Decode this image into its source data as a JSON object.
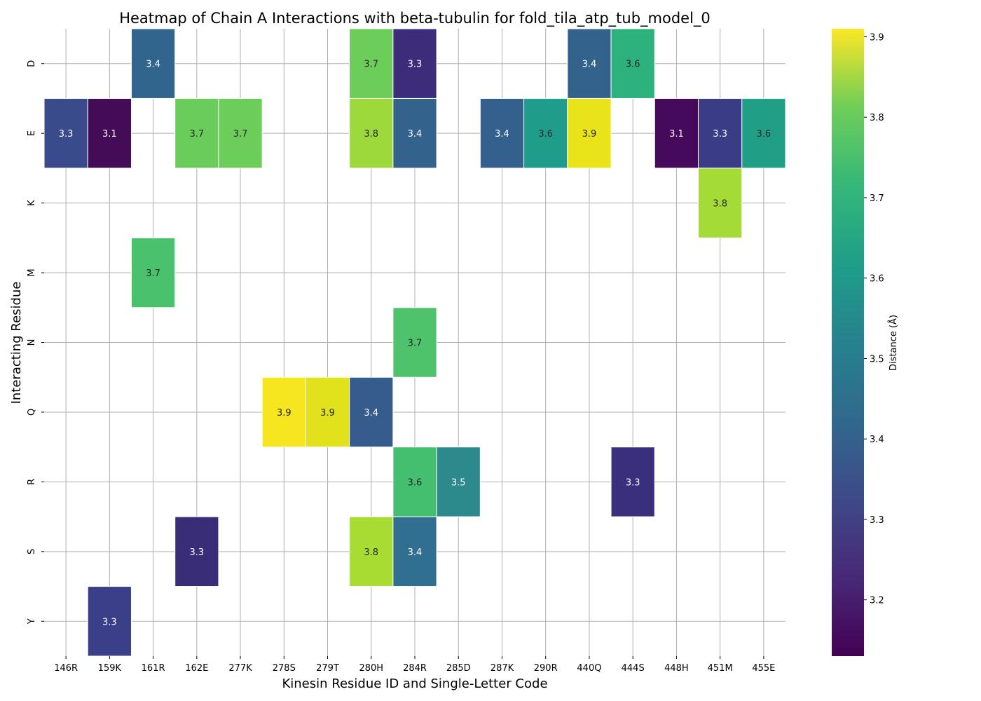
{
  "chart_data": {
    "type": "heatmap",
    "title": "Heatmap of Chain A Interactions with beta-tubulin for fold_tila_atp_tub_model_0",
    "xlabel": "Kinesin Residue ID and Single-Letter Code",
    "ylabel": "Interacting Residue",
    "colorbar_label": "Distance (Å)",
    "colormap": "viridis",
    "vmin": 3.13,
    "vmax": 3.91,
    "colorbar_ticks": [
      3.2,
      3.3,
      3.4,
      3.5,
      3.6,
      3.7,
      3.8,
      3.9
    ],
    "grid": true,
    "x_categories": [
      "146R",
      "159K",
      "161R",
      "162E",
      "277K",
      "278S",
      "279T",
      "280H",
      "284R",
      "285D",
      "287K",
      "290R",
      "440Q",
      "444S",
      "448H",
      "451M",
      "455E"
    ],
    "y_categories": [
      "D",
      "E",
      "K",
      "M",
      "N",
      "Q",
      "R",
      "S",
      "Y"
    ],
    "cells": [
      {
        "y": "D",
        "x": "161R",
        "value": 3.4
      },
      {
        "y": "D",
        "x": "280H",
        "value": 3.7
      },
      {
        "y": "D",
        "x": "284R",
        "value": 3.3
      },
      {
        "y": "D",
        "x": "440Q",
        "value": 3.4
      },
      {
        "y": "D",
        "x": "444S",
        "value": 3.6
      },
      {
        "y": "E",
        "x": "146R",
        "value": 3.3
      },
      {
        "y": "E",
        "x": "159K",
        "value": 3.1
      },
      {
        "y": "E",
        "x": "162E",
        "value": 3.7
      },
      {
        "y": "E",
        "x": "277K",
        "value": 3.7
      },
      {
        "y": "E",
        "x": "280H",
        "value": 3.8
      },
      {
        "y": "E",
        "x": "284R",
        "value": 3.4
      },
      {
        "y": "E",
        "x": "287K",
        "value": 3.4
      },
      {
        "y": "E",
        "x": "290R",
        "value": 3.6
      },
      {
        "y": "E",
        "x": "440Q",
        "value": 3.9
      },
      {
        "y": "E",
        "x": "448H",
        "value": 3.1
      },
      {
        "y": "E",
        "x": "451M",
        "value": 3.3
      },
      {
        "y": "E",
        "x": "455E",
        "value": 3.6
      },
      {
        "y": "K",
        "x": "451M",
        "value": 3.8
      },
      {
        "y": "M",
        "x": "161R",
        "value": 3.7
      },
      {
        "y": "N",
        "x": "284R",
        "value": 3.7
      },
      {
        "y": "Q",
        "x": "278S",
        "value": 3.9
      },
      {
        "y": "Q",
        "x": "279T",
        "value": 3.9
      },
      {
        "y": "Q",
        "x": "280H",
        "value": 3.4
      },
      {
        "y": "R",
        "x": "284R",
        "value": 3.6
      },
      {
        "y": "R",
        "x": "285D",
        "value": 3.5
      },
      {
        "y": "R",
        "x": "444S",
        "value": 3.3
      },
      {
        "y": "S",
        "x": "162E",
        "value": 3.3
      },
      {
        "y": "S",
        "x": "280H",
        "value": 3.8
      },
      {
        "y": "S",
        "x": "284R",
        "value": 3.4
      },
      {
        "y": "Y",
        "x": "159K",
        "value": 3.3
      }
    ],
    "cell_colors": {
      "D|161R": "#32658e",
      "D|280H": "#6ccd5a",
      "D|284R": "#3c2c7a",
      "D|440Q": "#33638d",
      "D|444S": "#2db27d",
      "E|146R": "#3a4b8b",
      "E|159K": "#440c56",
      "E|162E": "#6acd5b",
      "E|277K": "#6ccd5a",
      "E|280H": "#9dd93b",
      "E|284R": "#33628d",
      "E|287K": "#33608d",
      "E|290R": "#209c8a",
      "E|440Q": "#e8e419",
      "E|448H": "#460a5d",
      "E|451M": "#3a3c85",
      "E|455E": "#219f86",
      "K|451M": "#a5db36",
      "M|161R": "#4ac16d",
      "N|284R": "#4fc36b",
      "Q|278S": "#f5e61f",
      "Q|279T": "#e1e21c",
      "Q|280H": "#365c8d",
      "R|284R": "#43bf6f",
      "R|285D": "#2d8a8c",
      "R|444S": "#3a2f7c",
      "S|162E": "#3a2d78",
      "S|280H": "#a9dc33",
      "S|284R": "#306f8f",
      "Y|159K": "#3b3f89"
    }
  }
}
